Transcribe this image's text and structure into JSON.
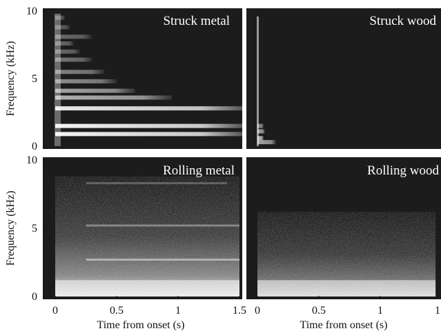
{
  "chart_data": [
    {
      "type": "heatmap",
      "title": "Struck metal",
      "xlim": [
        0,
        1.65
      ],
      "ylim": [
        0,
        10
      ],
      "xticks": [
        0,
        0.5,
        1,
        1.5
      ],
      "yticks": [
        0,
        5,
        10
      ],
      "xlabel": "",
      "ylabel": "Frequency (kHz)",
      "colors": {
        "background": "#1c1c1c",
        "energy": "#ffffff"
      },
      "bands": [
        {
          "f": 0.9,
          "end": 1.6,
          "intensity": 0.95
        },
        {
          "f": 1.5,
          "end": 1.6,
          "intensity": 0.95
        },
        {
          "f": 2.8,
          "end": 1.6,
          "intensity": 0.9
        },
        {
          "f": 3.6,
          "end": 0.95,
          "intensity": 0.65
        },
        {
          "f": 4.1,
          "end": 0.65,
          "intensity": 0.6
        },
        {
          "f": 4.8,
          "end": 0.5,
          "intensity": 0.5
        },
        {
          "f": 5.5,
          "end": 0.4,
          "intensity": 0.45
        },
        {
          "f": 6.4,
          "end": 0.3,
          "intensity": 0.4
        },
        {
          "f": 7.0,
          "end": 0.2,
          "intensity": 0.35
        },
        {
          "f": 7.6,
          "end": 0.15,
          "intensity": 0.35
        },
        {
          "f": 8.1,
          "end": 0.3,
          "intensity": 0.35
        },
        {
          "f": 8.8,
          "end": 0.12,
          "intensity": 0.3
        },
        {
          "f": 9.5,
          "end": 0.08,
          "intensity": 0.3
        }
      ]
    },
    {
      "type": "heatmap",
      "title": "Struck wood",
      "xlim": [
        0,
        1.65
      ],
      "ylim": [
        0,
        10
      ],
      "xticks": [
        0,
        0.5,
        1,
        1.5
      ],
      "yticks": [
        0,
        5,
        10
      ],
      "xlabel": "",
      "ylabel": "",
      "colors": {
        "background": "#1c1c1c",
        "energy": "#ffffff"
      },
      "bands": [
        {
          "f": 0.3,
          "end": 0.15,
          "intensity": 0.6
        },
        {
          "f": 0.6,
          "end": 0.05,
          "intensity": 0.7
        },
        {
          "f": 1.1,
          "end": 0.06,
          "intensity": 0.6
        },
        {
          "f": 1.5,
          "end": 0.05,
          "intensity": 0.5
        }
      ]
    },
    {
      "type": "heatmap",
      "title": "Rolling metal",
      "xlim": [
        0,
        1.65
      ],
      "ylim": [
        0,
        10
      ],
      "xticks": [
        0,
        0.5,
        1,
        1.5
      ],
      "yticks": [
        0,
        5,
        10
      ],
      "xlabel": "Time from onset (s)",
      "ylabel": "Frequency (kHz)",
      "colors": {
        "background": "#1c1c1c",
        "energy": "#ffffff"
      },
      "bands": [
        {
          "f": 2.7,
          "end": 1.5,
          "intensity": 0.45
        },
        {
          "f": 5.2,
          "end": 1.5,
          "intensity": 0.35
        },
        {
          "f": 8.3,
          "end": 1.4,
          "intensity": 0.25
        }
      ]
    },
    {
      "type": "heatmap",
      "title": "Rolling wood",
      "xlim": [
        0,
        1.65
      ],
      "ylim": [
        0,
        10
      ],
      "xticks": [
        0,
        0.5,
        1,
        1.5
      ],
      "yticks": [
        0,
        5,
        10
      ],
      "xlabel": "Time from onset (s)",
      "ylabel": "",
      "colors": {
        "background": "#1c1c1c",
        "energy": "#ffffff"
      },
      "bands": []
    }
  ]
}
